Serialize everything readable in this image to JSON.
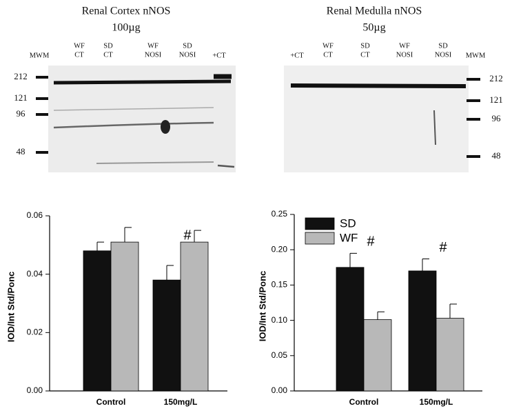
{
  "blots": [
    {
      "title": "Renal Cortex nNOS",
      "subtitle": "100µg",
      "lanes": [
        [
          "MWM"
        ],
        [
          "WF",
          "CT"
        ],
        [
          "SD",
          "CT"
        ],
        [
          "WF",
          "NOSI"
        ],
        [
          "SD",
          "NOSI"
        ],
        [
          "+CT"
        ]
      ],
      "markers": [
        "212",
        "121",
        "96",
        "48"
      ]
    },
    {
      "title": "Renal Medulla nNOS",
      "subtitle": "50µg",
      "lanes": [
        [
          "+CT"
        ],
        [
          "WF",
          "CT"
        ],
        [
          "SD",
          "CT"
        ],
        [
          "WF",
          "NOSI"
        ],
        [
          "SD",
          "NOSI"
        ],
        [
          "MWM"
        ]
      ],
      "markers": [
        "212",
        "121",
        "96",
        "48"
      ]
    }
  ],
  "chart_data": [
    {
      "type": "bar",
      "y_label": "IOD/Int Std/Ponc",
      "categories": [
        "Control",
        "150mg/L"
      ],
      "series": [
        {
          "name": "SD",
          "color": "#111111",
          "values": [
            0.048,
            0.038
          ],
          "errors": [
            0.003,
            0.005
          ]
        },
        {
          "name": "WF",
          "color": "#b8b8b8",
          "values": [
            0.051,
            0.051
          ],
          "errors": [
            0.005,
            0.004
          ]
        }
      ],
      "ylim": [
        0,
        0.06
      ],
      "yticks": [
        {
          "value": 0,
          "label": "0.00"
        },
        {
          "value": 0.02,
          "label": "0.02"
        },
        {
          "value": 0.04,
          "label": "0.04"
        },
        {
          "value": 0.06,
          "label": "0.06"
        }
      ],
      "annotations": [
        "#"
      ],
      "legend": false
    },
    {
      "type": "bar",
      "y_label": "IOD/Int Std/Ponc",
      "categories": [
        "Control",
        "150mg/L"
      ],
      "series": [
        {
          "name": "SD",
          "color": "#111111",
          "values": [
            0.175,
            0.17
          ],
          "errors": [
            0.02,
            0.017
          ]
        },
        {
          "name": "WF",
          "color": "#b8b8b8",
          "values": [
            0.101,
            0.103
          ],
          "errors": [
            0.011,
            0.02
          ]
        }
      ],
      "ylim": [
        0,
        0.25
      ],
      "yticks": [
        {
          "value": 0,
          "label": "0.00"
        },
        {
          "value": 0.05,
          "label": "0.05"
        },
        {
          "value": 0.1,
          "label": "0.10"
        },
        {
          "value": 0.15,
          "label": "0.15"
        },
        {
          "value": 0.2,
          "label": "0.20"
        },
        {
          "value": 0.25,
          "label": "0.25"
        }
      ],
      "annotations": [
        "#",
        "#"
      ],
      "legend": true
    }
  ]
}
